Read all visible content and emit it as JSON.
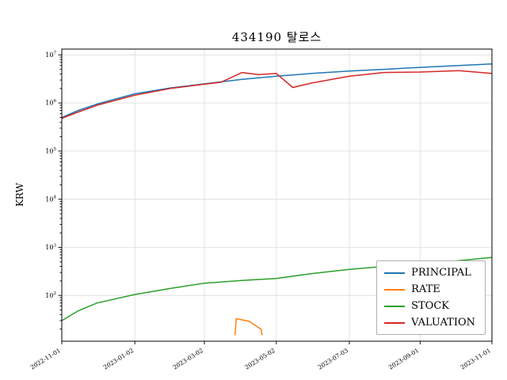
{
  "figure": {
    "title": "434190 탈로스",
    "ylabel": "KRW"
  },
  "chart_data": {
    "type": "line",
    "title": "434190 탈로스",
    "xlabel": "",
    "ylabel": "KRW",
    "yscale": "log",
    "ylim": [
      11,
      13000000
    ],
    "grid": true,
    "legend_position": "lower right",
    "x_range": [
      "2022-11-01",
      "2023-11-01"
    ],
    "x_ticks": [
      "2022-11-01",
      "2023-01-02",
      "2023-03-02",
      "2023-05-02",
      "2023-07-03",
      "2023-09-01",
      "2023-11-01"
    ],
    "y_tick_exponents": [
      2,
      3,
      4,
      5,
      6,
      7
    ],
    "series": [
      {
        "name": "PRINCIPAL",
        "color": "#1f77b4",
        "points": [
          [
            "2022-11-01",
            500000
          ],
          [
            "2022-11-15",
            700000
          ],
          [
            "2022-12-01",
            950000
          ],
          [
            "2023-01-02",
            1550000
          ],
          [
            "2023-02-01",
            2050000
          ],
          [
            "2023-03-02",
            2500000
          ],
          [
            "2023-04-03",
            3100000
          ],
          [
            "2023-05-02",
            3600000
          ],
          [
            "2023-06-01",
            4100000
          ],
          [
            "2023-07-03",
            4600000
          ],
          [
            "2023-08-01",
            5000000
          ],
          [
            "2023-09-01",
            5500000
          ],
          [
            "2023-10-04",
            6000000
          ],
          [
            "2023-11-01",
            6500000
          ]
        ]
      },
      {
        "name": "RATE",
        "color": "#ff7f0e",
        "points": [
          [
            "2023-03-28",
            15
          ],
          [
            "2023-03-29",
            33
          ],
          [
            "2023-04-09",
            29
          ],
          [
            "2023-04-19",
            20
          ],
          [
            "2023-04-20",
            15
          ]
        ]
      },
      {
        "name": "STOCK",
        "color": "#2ca02c",
        "points": [
          [
            "2022-11-01",
            30
          ],
          [
            "2022-11-15",
            48
          ],
          [
            "2022-12-01",
            70
          ],
          [
            "2023-01-02",
            105
          ],
          [
            "2023-02-01",
            140
          ],
          [
            "2023-03-02",
            180
          ],
          [
            "2023-04-03",
            205
          ],
          [
            "2023-05-02",
            225
          ],
          [
            "2023-06-01",
            285
          ],
          [
            "2023-07-03",
            350
          ],
          [
            "2023-08-01",
            400
          ],
          [
            "2023-09-01",
            455
          ],
          [
            "2023-10-04",
            530
          ],
          [
            "2023-11-01",
            620
          ]
        ]
      },
      {
        "name": "VALUATION",
        "color": "#d62728",
        "points": [
          [
            "2022-11-01",
            480000
          ],
          [
            "2022-11-15",
            650000
          ],
          [
            "2022-12-01",
            900000
          ],
          [
            "2023-01-02",
            1450000
          ],
          [
            "2023-02-01",
            2000000
          ],
          [
            "2023-03-02",
            2450000
          ],
          [
            "2023-03-16",
            2700000
          ],
          [
            "2023-04-03",
            4300000
          ],
          [
            "2023-04-17",
            3900000
          ],
          [
            "2023-05-02",
            4100000
          ],
          [
            "2023-05-16",
            2100000
          ],
          [
            "2023-06-01",
            2600000
          ],
          [
            "2023-07-03",
            3600000
          ],
          [
            "2023-08-01",
            4300000
          ],
          [
            "2023-09-01",
            4400000
          ],
          [
            "2023-10-04",
            4700000
          ],
          [
            "2023-11-01",
            4100000
          ]
        ]
      }
    ]
  }
}
